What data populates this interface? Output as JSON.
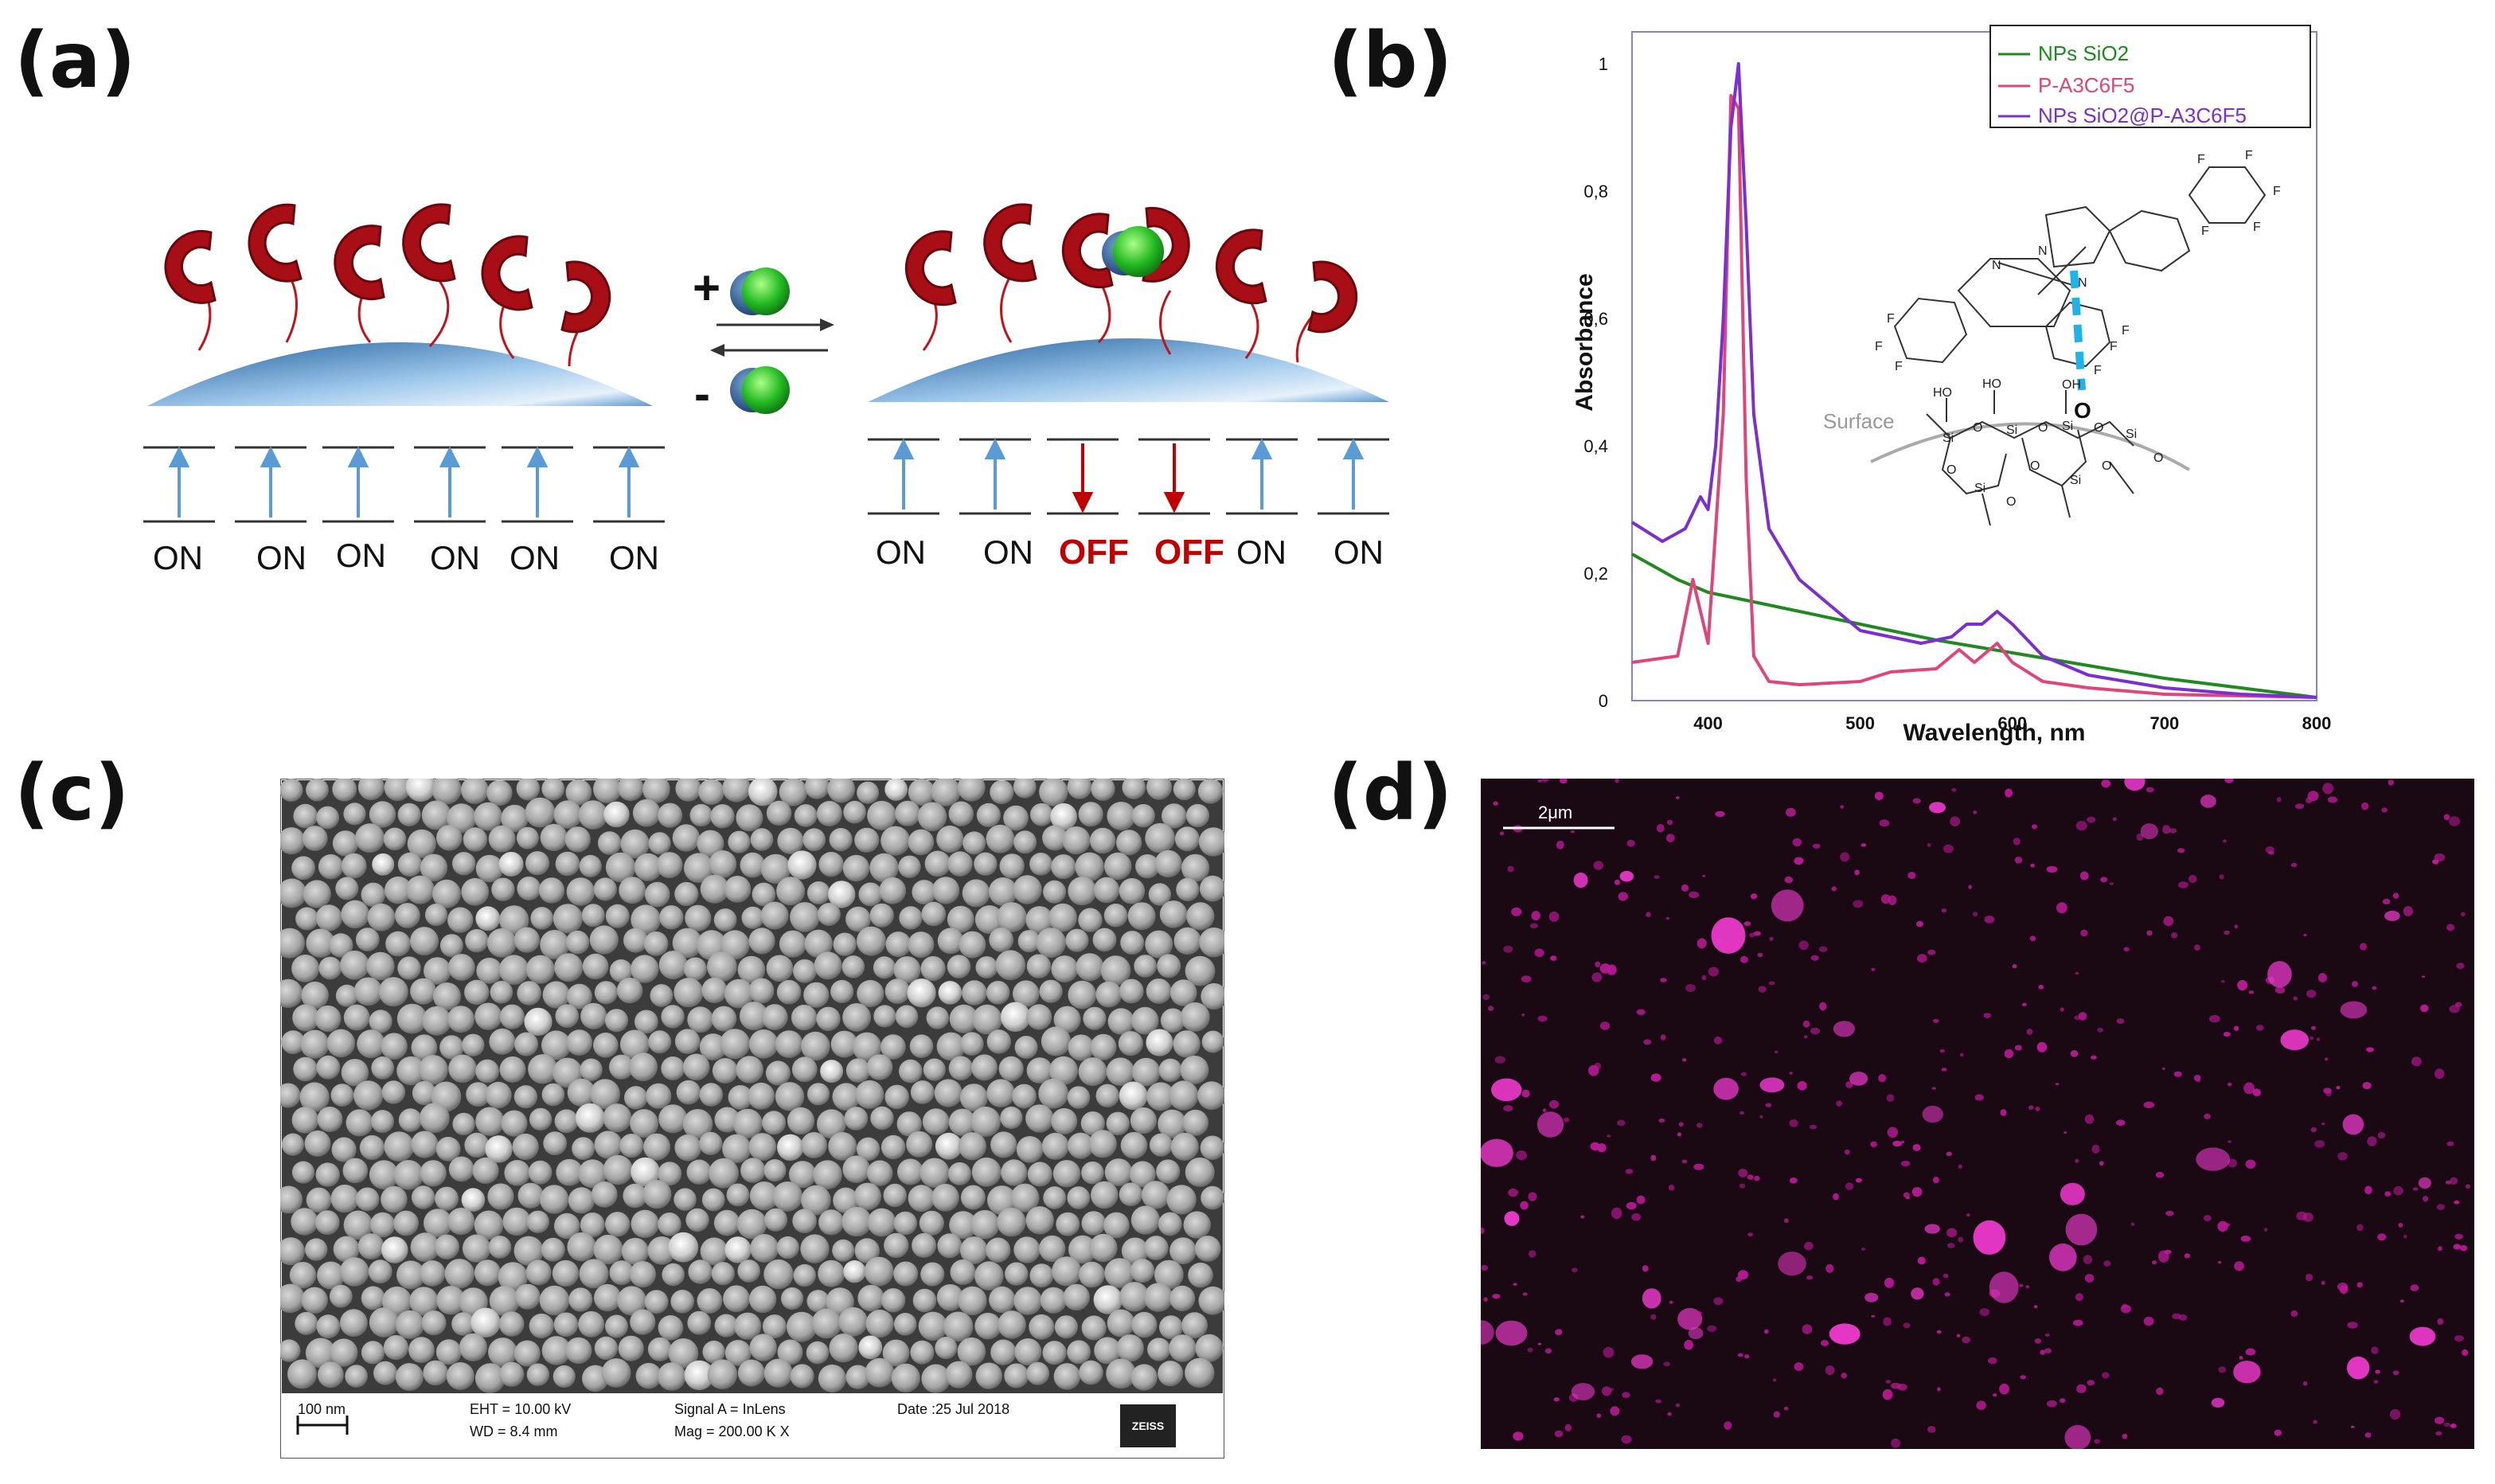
{
  "panels": {
    "a": {
      "letter": "(a)",
      "plus_sign": "+",
      "minus_sign": "-",
      "left_states": [
        "ON",
        "ON",
        "ON",
        "ON",
        "ON",
        "ON"
      ],
      "right_states": [
        "ON",
        "ON",
        "OFF",
        "OFF",
        "ON",
        "ON"
      ],
      "colors": {
        "receptor": "#b01018",
        "np": "#5a9fd4",
        "arrow_on": "#5b9bd5",
        "arrow_off": "#c00000",
        "ion": "#33cc33"
      }
    },
    "b": {
      "letter": "(b)",
      "legend": [
        "NPs SiO2",
        "P-A3C6F5",
        "NPs SiO2@P-A3C6F5"
      ],
      "surface_label": "Surface",
      "chem": {
        "ho1": "HO",
        "ho2": "HO",
        "oh": "OH",
        "si": "Si",
        "o": "O",
        "n": "N",
        "f": "F"
      }
    },
    "c": {
      "letter": "(c)",
      "scale": "100 nm",
      "eht": "EHT = 10.00 kV",
      "wd": "WD =  8.4 mm",
      "signal": "Signal A = InLens",
      "mag": "Mag = 200.00 K X",
      "date": "Date :25 Jul 2018",
      "logo": "ZEISS"
    },
    "d": {
      "letter": "(d)",
      "scale": "2μm"
    }
  },
  "chart_data": {
    "type": "line",
    "xlabel": "Wavelength, nm",
    "ylabel": "Absorbance",
    "xlim": [
      350,
      800
    ],
    "ylim": [
      0,
      1.0
    ],
    "xticks": [
      "400",
      "500",
      "600",
      "700",
      "800"
    ],
    "yticks": [
      "0",
      "0,2",
      "0,4",
      "0,6",
      "0,8",
      "1"
    ],
    "legend_position": "top-right",
    "series": [
      {
        "name": "NPs SiO2",
        "color": "#1f8a1f",
        "x": [
          350,
          380,
          400,
          420,
          450,
          500,
          550,
          600,
          650,
          700,
          750,
          800
        ],
        "y": [
          0.23,
          0.19,
          0.17,
          0.16,
          0.145,
          0.12,
          0.095,
          0.075,
          0.055,
          0.035,
          0.02,
          0.005
        ]
      },
      {
        "name": "P-A3C6F5",
        "color": "#e0457a",
        "x": [
          350,
          380,
          390,
          400,
          410,
          415,
          420,
          425,
          430,
          440,
          460,
          500,
          520,
          550,
          565,
          575,
          580,
          590,
          600,
          620,
          650,
          700,
          800
        ],
        "y": [
          0.06,
          0.07,
          0.19,
          0.09,
          0.45,
          0.95,
          0.93,
          0.35,
          0.07,
          0.03,
          0.025,
          0.03,
          0.045,
          0.05,
          0.08,
          0.06,
          0.07,
          0.09,
          0.06,
          0.03,
          0.02,
          0.01,
          0.005
        ]
      },
      {
        "name": "NPs SiO2@P-A3C6F5",
        "color": "#7b2fd0",
        "x": [
          350,
          370,
          385,
          395,
          400,
          405,
          410,
          415,
          420,
          425,
          430,
          440,
          460,
          500,
          540,
          560,
          570,
          580,
          590,
          600,
          620,
          650,
          700,
          750,
          800
        ],
        "y": [
          0.28,
          0.25,
          0.27,
          0.32,
          0.3,
          0.4,
          0.6,
          0.9,
          1.0,
          0.75,
          0.45,
          0.27,
          0.19,
          0.11,
          0.09,
          0.1,
          0.12,
          0.12,
          0.14,
          0.12,
          0.07,
          0.04,
          0.02,
          0.01,
          0.005
        ]
      }
    ]
  }
}
